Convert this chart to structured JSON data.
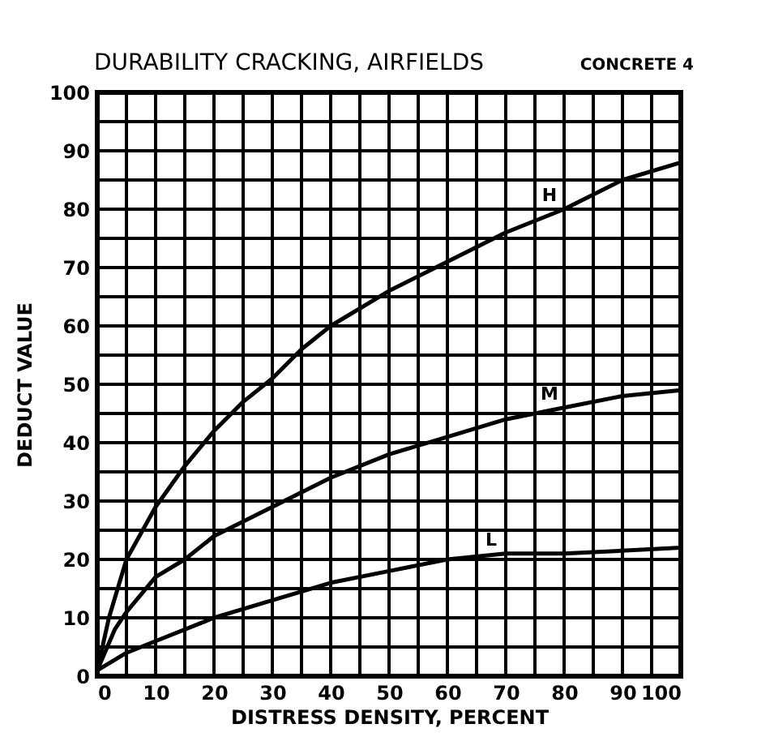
{
  "chart_data": {
    "type": "line",
    "title": "DURABILITY CRACKING, AIRFIELDS",
    "subtitle": "CONCRETE 4",
    "xlabel": "DISTRESS DENSITY, PERCENT",
    "ylabel": "DEDUCT VALUE",
    "series": [
      {
        "name": "H",
        "color": "#000000",
        "x": [
          0,
          2,
          5,
          10,
          15,
          20,
          25,
          30,
          35,
          40,
          50,
          60,
          70,
          80,
          90,
          100
        ],
        "values": [
          1,
          10,
          20,
          29,
          36,
          42,
          47,
          51,
          56,
          60,
          66,
          71,
          76,
          80,
          85,
          88
        ]
      },
      {
        "name": "M",
        "color": "#000000",
        "x": [
          0,
          3,
          5,
          10,
          15,
          20,
          30,
          40,
          50,
          60,
          70,
          80,
          90,
          100
        ],
        "values": [
          1,
          8,
          11,
          17,
          20,
          24,
          29,
          34,
          38,
          41,
          44,
          46,
          48,
          49
        ]
      },
      {
        "name": "L",
        "color": "#000000",
        "x": [
          0,
          5,
          10,
          20,
          30,
          40,
          50,
          60,
          70,
          80,
          100
        ],
        "values": [
          1,
          4,
          6,
          10,
          13,
          16,
          18,
          20,
          21,
          21,
          22
        ]
      }
    ],
    "xlim": [
      0,
      100
    ],
    "ylim": [
      0,
      100
    ],
    "xticks": [
      0,
      {
        "value": 5,
        "label": null
      },
      10,
      {
        "value": 15,
        "label": null
      },
      20,
      {
        "value": 25,
        "label": null
      },
      30,
      {
        "value": 35,
        "label": null
      },
      40,
      {
        "value": 45,
        "label": null
      },
      50,
      {
        "value": 55,
        "label": null
      },
      60,
      {
        "value": 65,
        "label": null
      },
      70,
      {
        "value": 75,
        "label": null
      },
      80,
      {
        "value": 85,
        "label": null
      },
      90,
      {
        "value": 95,
        "label": null
      },
      100
    ],
    "yticks": [
      0,
      {
        "value": 5,
        "label": null
      },
      10,
      {
        "value": 15,
        "label": null
      },
      20,
      {
        "value": 25,
        "label": null
      },
      30,
      {
        "value": 35,
        "label": null
      },
      40,
      {
        "value": 45,
        "label": null
      },
      50,
      {
        "value": 55,
        "label": null
      },
      60,
      {
        "value": 65,
        "label": null
      },
      70,
      {
        "value": 75,
        "label": null
      },
      80,
      {
        "value": 85,
        "label": null
      },
      90,
      {
        "value": 95,
        "label": null
      },
      100
    ],
    "grid": true,
    "legend": false,
    "marker": "none",
    "line_style": "solid"
  }
}
